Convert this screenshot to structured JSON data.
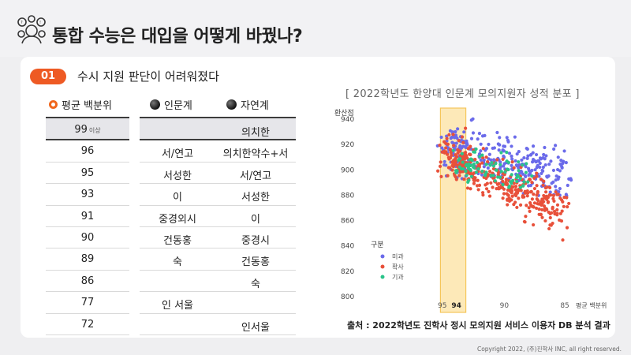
{
  "page": {
    "title": "통합 수능은 대입을 어떻게 바꿨나?",
    "section_number": "01",
    "section_title": "수시 지원 판단이 어려워졌다",
    "source": "출처 : 2022학년도 진학사 정시 모의지원 서비스 이용자 DB 분석 결과",
    "copyright": "Copyright 2022, (주)진학사 INC, all right reserved."
  },
  "table": {
    "headers": [
      "평균 백분위",
      "인문계",
      "자연계"
    ],
    "rows": [
      {
        "pct": "99",
        "pct_suffix": "이상",
        "hum": "",
        "sci": "의치한"
      },
      {
        "pct": "96",
        "pct_suffix": "",
        "hum": "서/연고",
        "sci": "의치한약수+서"
      },
      {
        "pct": "95",
        "pct_suffix": "",
        "hum": "서성한",
        "sci": "서/연고"
      },
      {
        "pct": "93",
        "pct_suffix": "",
        "hum": "이",
        "sci": "서성한"
      },
      {
        "pct": "91",
        "pct_suffix": "",
        "hum": "중경외시",
        "sci": "이"
      },
      {
        "pct": "90",
        "pct_suffix": "",
        "hum": "건동홍",
        "sci": "중경시"
      },
      {
        "pct": "89",
        "pct_suffix": "",
        "hum": "숙",
        "sci": "건동홍"
      },
      {
        "pct": "86",
        "pct_suffix": "",
        "hum": "",
        "sci": "숙"
      },
      {
        "pct": "77",
        "pct_suffix": "",
        "hum": "인 서울",
        "sci": ""
      },
      {
        "pct": "72",
        "pct_suffix": "",
        "hum": "",
        "sci": "인서울"
      }
    ]
  },
  "chart_data": {
    "type": "scatter",
    "title": "[ 2022학년도 한양대 인문계 모의지원자 성적 분포 ]",
    "ylabel": "환산점",
    "xlabel": "평균 백분위",
    "x_ticks": [
      "95",
      "94",
      "90",
      "85"
    ],
    "y_ticks": [
      940,
      920,
      900,
      880,
      860,
      840,
      820,
      800
    ],
    "ylim": [
      800,
      945
    ],
    "xlim": [
      96.5,
      84.5
    ],
    "highlight_band": {
      "x_from": 95.3,
      "x_to": 93.2,
      "label": "94"
    },
    "legend_title": "구분",
    "legend_placement": "bottom-left",
    "series": [
      {
        "name": "미과",
        "color": "#6b6bea",
        "center_start": [
          95,
          918
        ],
        "center_end": [
          85,
          897
        ],
        "spread": 10,
        "count": 300
      },
      {
        "name": "확사",
        "color": "#e8503a",
        "center_start": [
          95,
          912
        ],
        "center_end": [
          85,
          866
        ],
        "spread": 9,
        "count": 380
      },
      {
        "name": "기과",
        "color": "#2bc48a",
        "center_start": [
          94,
          906
        ],
        "center_end": [
          88,
          893
        ],
        "spread": 6,
        "count": 90
      }
    ]
  },
  "colors": {
    "accent": "#ee5a24",
    "highlight_band": "#fde9b8",
    "highlight_border": "#f5c65a"
  }
}
